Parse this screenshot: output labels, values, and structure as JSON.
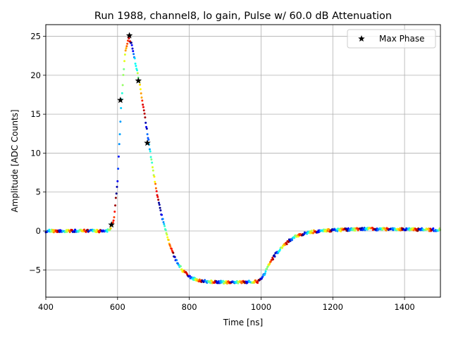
{
  "chart_data": {
    "type": "scatter",
    "title": "Run 1988, channel8, lo gain, Pulse w/ 60.0 dB Attenuation",
    "xlabel": "Time [ns]",
    "ylabel": "Amplitude [ADC Counts]",
    "xlim": [
      400,
      1500
    ],
    "ylim": [
      -8.5,
      26.5
    ],
    "xticks": [
      400,
      600,
      800,
      1000,
      1200,
      1400
    ],
    "yticks": [
      -5,
      0,
      5,
      10,
      15,
      20,
      25
    ],
    "grid": true,
    "legend_position": "top-right",
    "colormap": "jet",
    "pulse_shape": {
      "description_points_x": [
        400,
        570,
        580,
        590,
        600,
        610,
        620,
        630,
        640,
        650,
        660,
        670,
        680,
        690,
        700,
        710,
        720,
        740,
        760,
        780,
        800,
        820,
        850,
        900,
        950,
        990,
        1000,
        1010,
        1020,
        1040,
        1060,
        1080,
        1100,
        1130,
        1160,
        1200,
        1250,
        1300,
        1400,
        1500
      ],
      "description_points_y": [
        0.0,
        0.0,
        0.3,
        1.5,
        6.5,
        16.0,
        22.5,
        24.8,
        24.0,
        21.5,
        19.3,
        16.5,
        13.5,
        10.5,
        7.5,
        4.8,
        2.5,
        -1.0,
        -3.5,
        -5.0,
        -5.9,
        -6.3,
        -6.5,
        -6.6,
        -6.6,
        -6.5,
        -6.2,
        -5.5,
        -4.5,
        -3.0,
        -2.0,
        -1.2,
        -0.6,
        -0.2,
        0.0,
        0.1,
        0.2,
        0.25,
        0.2,
        0.15
      ]
    },
    "series": [
      {
        "name": "Max Phase",
        "marker": "star",
        "color": "#000000",
        "x": [
          583,
          608,
          633,
          658,
          683
        ],
        "y": [
          0.8,
          16.8,
          25.1,
          19.3,
          11.3
        ]
      }
    ]
  }
}
